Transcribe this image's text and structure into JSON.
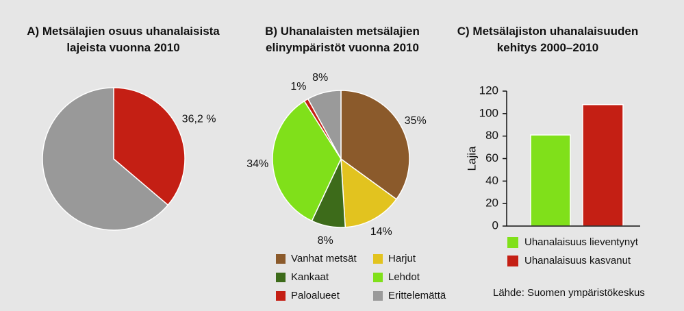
{
  "chart_data": [
    {
      "type": "pie",
      "title": "A) Metsälajien osuus uhanalaisista lajeista vuonna 2010",
      "values": [
        36.2,
        63.8
      ],
      "value_labels": [
        "36,2 %",
        null
      ],
      "colors": [
        "#c41f14",
        "#999999"
      ]
    },
    {
      "type": "pie",
      "title": "B) Uhanalaisten metsälajien elinympäristöt vuonna 2010",
      "categories": [
        "Vanhat metsät",
        "Harjut",
        "Kankaat",
        "Lehdot",
        "Paloalueet",
        "Erittelemättä"
      ],
      "values": [
        35,
        14,
        8,
        34,
        1,
        8
      ],
      "value_labels": [
        "35%",
        "14%",
        "8%",
        "34%",
        "1%",
        "8%"
      ],
      "colors": [
        "#8b5a2b",
        "#e2c31f",
        "#3d6b1a",
        "#80e01a",
        "#c41f14",
        "#9a9a9a"
      ]
    },
    {
      "type": "bar",
      "title": "C) Metsälajiston uhanalaisuuden kehitys 2000–2010",
      "y_label": "Lajia",
      "series": [
        {
          "name": "Uhanalaisuus lieventynyt",
          "color": "#80e01a",
          "values": [
            81
          ]
        },
        {
          "name": "Uhanalaisuus kasvanut",
          "color": "#c41f14",
          "values": [
            108
          ]
        }
      ],
      "ylim": [
        0,
        120
      ],
      "yticks": [
        0,
        20,
        40,
        60,
        80,
        100,
        120
      ],
      "grid": false,
      "source": "Lähde: Suomen ympäristökeskus"
    }
  ]
}
